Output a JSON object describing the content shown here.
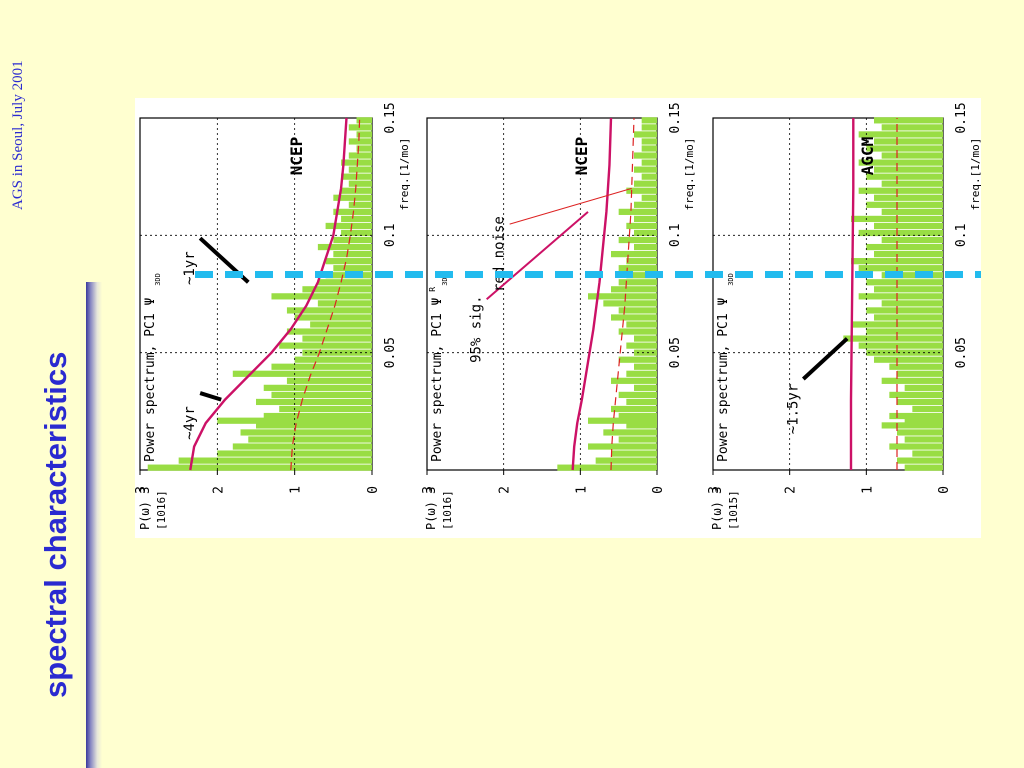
{
  "slide": {
    "title": "spectral characteristics",
    "footer": "AGS in Seoul, July 2001"
  },
  "colors": {
    "background": "#ffffd0",
    "title": "#2a2ad0",
    "spectrum_fill": "#99dd44",
    "significance_line": "#cc1166",
    "red_noise_line": "#dd2222",
    "marker_line": "#22bbee"
  },
  "chart_data": [
    {
      "type": "area",
      "panel_title": "NCEP",
      "plot_label": "Power spectrum, PC1",
      "variable": "Ψ",
      "subscript": "3DD",
      "ylabel": "P(ω)",
      "yunit": "[10",
      "yunit_exp": "16",
      "yunit_close": "]",
      "xlabel": "freq.[1/mo]",
      "xlim": [
        0,
        0.15
      ],
      "ylim": [
        0,
        3
      ],
      "x_ticks": [
        0,
        0.05,
        0.1,
        0.15
      ],
      "x_tick_labels": [
        "0.05",
        "0.1",
        "0.15"
      ],
      "y_ticks": [
        0,
        1,
        2,
        3
      ],
      "y_tick_labels": [
        "0",
        "1",
        "2",
        "3"
      ],
      "grid": true,
      "series": [
        {
          "values": [
            [
              0.001,
              2.9
            ],
            [
              0.004,
              2.5
            ],
            [
              0.007,
              2.0
            ],
            [
              0.01,
              1.8
            ],
            [
              0.013,
              1.6
            ],
            [
              0.016,
              1.7
            ],
            [
              0.019,
              1.5
            ],
            [
              0.021,
              2.0
            ],
            [
              0.023,
              1.4
            ],
            [
              0.026,
              1.2
            ],
            [
              0.029,
              1.5
            ],
            [
              0.032,
              1.3
            ],
            [
              0.035,
              1.4
            ],
            [
              0.038,
              1.1
            ],
            [
              0.041,
              1.8
            ],
            [
              0.044,
              1.3
            ],
            [
              0.047,
              1.0
            ],
            [
              0.05,
              0.9
            ],
            [
              0.053,
              1.2
            ],
            [
              0.056,
              0.9
            ],
            [
              0.059,
              1.1
            ],
            [
              0.062,
              0.8
            ],
            [
              0.065,
              1.0
            ],
            [
              0.068,
              1.1
            ],
            [
              0.071,
              0.7
            ],
            [
              0.074,
              1.3
            ],
            [
              0.077,
              0.9
            ],
            [
              0.08,
              0.7
            ],
            [
              0.083,
              0.6
            ],
            [
              0.086,
              0.5
            ],
            [
              0.089,
              0.6
            ],
            [
              0.092,
              0.5
            ],
            [
              0.095,
              0.7
            ],
            [
              0.098,
              0.5
            ],
            [
              0.101,
              0.4
            ],
            [
              0.104,
              0.6
            ],
            [
              0.107,
              0.4
            ],
            [
              0.11,
              0.5
            ],
            [
              0.113,
              0.3
            ],
            [
              0.116,
              0.5
            ],
            [
              0.119,
              0.4
            ],
            [
              0.122,
              0.3
            ],
            [
              0.125,
              0.4
            ],
            [
              0.128,
              0.3
            ],
            [
              0.131,
              0.4
            ],
            [
              0.134,
              0.3
            ],
            [
              0.137,
              0.2
            ],
            [
              0.14,
              0.3
            ],
            [
              0.143,
              0.2
            ],
            [
              0.146,
              0.3
            ],
            [
              0.149,
              0.2
            ]
          ]
        },
        {
          "values": [
            [
              0,
              2.35
            ],
            [
              0.01,
              2.3
            ],
            [
              0.02,
              2.15
            ],
            [
              0.03,
              1.9
            ],
            [
              0.04,
              1.6
            ],
            [
              0.05,
              1.3
            ],
            [
              0.06,
              1.05
            ],
            [
              0.07,
              0.85
            ],
            [
              0.08,
              0.7
            ],
            [
              0.09,
              0.6
            ],
            [
              0.1,
              0.5
            ],
            [
              0.11,
              0.45
            ],
            [
              0.12,
              0.4
            ],
            [
              0.13,
              0.37
            ],
            [
              0.14,
              0.35
            ],
            [
              0.15,
              0.33
            ]
          ]
        },
        {
          "values": [
            [
              0,
              1.05
            ],
            [
              0.01,
              1.03
            ],
            [
              0.02,
              0.98
            ],
            [
              0.03,
              0.9
            ],
            [
              0.04,
              0.8
            ],
            [
              0.05,
              0.68
            ],
            [
              0.06,
              0.58
            ],
            [
              0.07,
              0.48
            ],
            [
              0.08,
              0.4
            ],
            [
              0.09,
              0.33
            ],
            [
              0.1,
              0.28
            ],
            [
              0.11,
              0.24
            ],
            [
              0.12,
              0.21
            ],
            [
              0.13,
              0.19
            ],
            [
              0.14,
              0.17
            ],
            [
              0.15,
              0.16
            ]
          ]
        }
      ],
      "annotations": [
        {
          "text": "~4yr",
          "x": 0.02,
          "y": 2.3,
          "line_to": [
            0.03,
            1.95
          ]
        },
        {
          "text": "~1yr",
          "x": 0.086,
          "y": 2.3,
          "line_to": [
            0.08,
            1.6
          ]
        }
      ]
    },
    {
      "type": "area",
      "panel_title": "NCEP",
      "plot_label": "Power spectrum, PC1",
      "variable": "Ψ",
      "subscript": "3DD",
      "superscript": "R",
      "ylabel": "P(ω)",
      "yunit": "[10",
      "yunit_exp": "16",
      "yunit_close": "]",
      "xlabel": "freq.[1/mo]",
      "xlim": [
        0,
        0.15
      ],
      "ylim": [
        0,
        3
      ],
      "x_ticks": [
        0,
        0.05,
        0.1,
        0.15
      ],
      "x_tick_labels": [
        "0.05",
        "0.1",
        "0.15"
      ],
      "y_ticks": [
        0,
        1,
        2,
        3
      ],
      "y_tick_labels": [
        "0",
        "1",
        "2",
        "3"
      ],
      "grid": true,
      "series": [
        {
          "values": [
            [
              0.001,
              1.3
            ],
            [
              0.004,
              0.8
            ],
            [
              0.007,
              0.6
            ],
            [
              0.01,
              0.9
            ],
            [
              0.013,
              0.5
            ],
            [
              0.016,
              0.7
            ],
            [
              0.019,
              0.4
            ],
            [
              0.021,
              0.9
            ],
            [
              0.023,
              0.5
            ],
            [
              0.026,
              0.6
            ],
            [
              0.029,
              0.4
            ],
            [
              0.032,
              0.5
            ],
            [
              0.035,
              0.3
            ],
            [
              0.038,
              0.6
            ],
            [
              0.041,
              0.4
            ],
            [
              0.044,
              0.3
            ],
            [
              0.047,
              0.5
            ],
            [
              0.05,
              0.3
            ],
            [
              0.053,
              0.4
            ],
            [
              0.056,
              0.3
            ],
            [
              0.059,
              0.5
            ],
            [
              0.062,
              0.4
            ],
            [
              0.065,
              0.6
            ],
            [
              0.068,
              0.5
            ],
            [
              0.071,
              0.7
            ],
            [
              0.074,
              0.9
            ],
            [
              0.077,
              0.6
            ],
            [
              0.08,
              0.5
            ],
            [
              0.083,
              0.4
            ],
            [
              0.086,
              0.5
            ],
            [
              0.089,
              0.4
            ],
            [
              0.092,
              0.6
            ],
            [
              0.095,
              0.3
            ],
            [
              0.098,
              0.5
            ],
            [
              0.101,
              0.3
            ],
            [
              0.104,
              0.4
            ],
            [
              0.107,
              0.3
            ],
            [
              0.11,
              0.5
            ],
            [
              0.113,
              0.3
            ],
            [
              0.116,
              0.2
            ],
            [
              0.119,
              0.4
            ],
            [
              0.122,
              0.3
            ],
            [
              0.125,
              0.2
            ],
            [
              0.128,
              0.3
            ],
            [
              0.131,
              0.2
            ],
            [
              0.134,
              0.3
            ],
            [
              0.137,
              0.2
            ],
            [
              0.14,
              0.2
            ],
            [
              0.143,
              0.3
            ],
            [
              0.146,
              0.2
            ],
            [
              0.149,
              0.2
            ]
          ]
        },
        {
          "values": [
            [
              0,
              1.1
            ],
            [
              0.01,
              1.08
            ],
            [
              0.02,
              1.04
            ],
            [
              0.03,
              0.98
            ],
            [
              0.04,
              0.93
            ],
            [
              0.05,
              0.88
            ],
            [
              0.06,
              0.83
            ],
            [
              0.07,
              0.79
            ],
            [
              0.08,
              0.75
            ],
            [
              0.09,
              0.72
            ],
            [
              0.1,
              0.69
            ],
            [
              0.11,
              0.66
            ],
            [
              0.12,
              0.64
            ],
            [
              0.13,
              0.62
            ],
            [
              0.14,
              0.61
            ],
            [
              0.15,
              0.6
            ]
          ]
        },
        {
          "values": [
            [
              0,
              0.6
            ],
            [
              0.01,
              0.59
            ],
            [
              0.02,
              0.57
            ],
            [
              0.03,
              0.54
            ],
            [
              0.04,
              0.51
            ],
            [
              0.05,
              0.48
            ],
            [
              0.06,
              0.45
            ],
            [
              0.07,
              0.42
            ],
            [
              0.08,
              0.4
            ],
            [
              0.09,
              0.38
            ],
            [
              0.1,
              0.36
            ],
            [
              0.11,
              0.34
            ],
            [
              0.12,
              0.33
            ],
            [
              0.13,
              0.32
            ],
            [
              0.14,
              0.31
            ],
            [
              0.15,
              0.3
            ]
          ]
        }
      ],
      "annotations": [
        {
          "text": "95% sig.",
          "x": 0.06,
          "y": 2.3,
          "line_to": [
            0.11,
            0.9
          ]
        },
        {
          "text": "red noise",
          "x": 0.092,
          "y": 2.0,
          "line_to": [
            0.12,
            0.33
          ]
        }
      ]
    },
    {
      "type": "area",
      "panel_title": "AGCM",
      "plot_label": "Power spectrum, PC1",
      "variable": "Ψ",
      "subscript": "3DD",
      "ylabel": "P(ω)",
      "yunit": "[10",
      "yunit_exp": "15",
      "yunit_close": "]",
      "xlabel": "freq.[1/mo]",
      "xlim": [
        0,
        0.15
      ],
      "ylim": [
        0,
        3
      ],
      "x_ticks": [
        0,
        0.05,
        0.1,
        0.15
      ],
      "x_tick_labels": [
        "0.05",
        "0.1",
        "0.15"
      ],
      "y_ticks": [
        0,
        1,
        2,
        3
      ],
      "y_tick_labels": [
        "0",
        "1",
        "2",
        "3"
      ],
      "grid": true,
      "series": [
        {
          "values": [
            [
              0.001,
              0.5
            ],
            [
              0.004,
              0.6
            ],
            [
              0.007,
              0.4
            ],
            [
              0.01,
              0.7
            ],
            [
              0.013,
              0.5
            ],
            [
              0.016,
              0.6
            ],
            [
              0.019,
              0.8
            ],
            [
              0.021,
              0.5
            ],
            [
              0.023,
              0.7
            ],
            [
              0.026,
              0.4
            ],
            [
              0.029,
              0.6
            ],
            [
              0.032,
              0.7
            ],
            [
              0.035,
              0.5
            ],
            [
              0.038,
              0.8
            ],
            [
              0.041,
              0.6
            ],
            [
              0.044,
              0.7
            ],
            [
              0.047,
              0.9
            ],
            [
              0.05,
              1.0
            ],
            [
              0.053,
              1.1
            ],
            [
              0.056,
              1.3
            ],
            [
              0.059,
              1.0
            ],
            [
              0.062,
              1.2
            ],
            [
              0.065,
              0.9
            ],
            [
              0.068,
              1.0
            ],
            [
              0.071,
              0.8
            ],
            [
              0.074,
              1.1
            ],
            [
              0.077,
              0.9
            ],
            [
              0.08,
              1.0
            ],
            [
              0.083,
              0.8
            ],
            [
              0.086,
              1.1
            ],
            [
              0.089,
              1.2
            ],
            [
              0.092,
              0.9
            ],
            [
              0.095,
              1.0
            ],
            [
              0.098,
              0.8
            ],
            [
              0.101,
              1.1
            ],
            [
              0.104,
              0.9
            ],
            [
              0.107,
              1.2
            ],
            [
              0.11,
              0.8
            ],
            [
              0.113,
              1.0
            ],
            [
              0.116,
              0.9
            ],
            [
              0.119,
              1.1
            ],
            [
              0.122,
              0.8
            ],
            [
              0.125,
              1.0
            ],
            [
              0.128,
              0.9
            ],
            [
              0.131,
              1.1
            ],
            [
              0.134,
              0.8
            ],
            [
              0.137,
              1.0
            ],
            [
              0.14,
              0.9
            ],
            [
              0.143,
              1.1
            ],
            [
              0.146,
              0.8
            ],
            [
              0.149,
              0.9
            ]
          ]
        },
        {
          "values": [
            [
              0,
              1.2
            ],
            [
              0.03,
              1.2
            ],
            [
              0.06,
              1.19
            ],
            [
              0.09,
              1.18
            ],
            [
              0.12,
              1.17
            ],
            [
              0.15,
              1.17
            ]
          ]
        },
        {
          "values": [
            [
              0,
              0.6
            ],
            [
              0.03,
              0.6
            ],
            [
              0.06,
              0.6
            ],
            [
              0.09,
              0.6
            ],
            [
              0.12,
              0.6
            ],
            [
              0.15,
              0.6
            ]
          ]
        }
      ],
      "annotations": [
        {
          "text": "~1.5yr",
          "x": 0.026,
          "y": 1.9,
          "line_to": [
            0.056,
            1.25
          ]
        }
      ]
    }
  ]
}
